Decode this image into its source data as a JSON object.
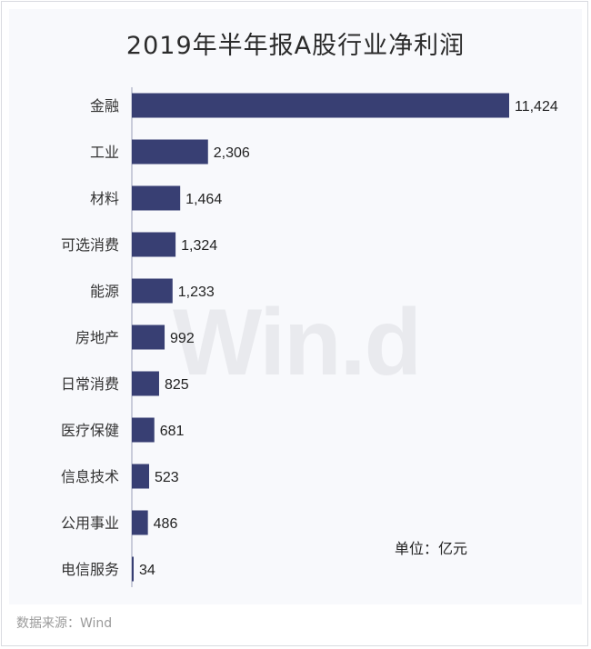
{
  "title": "2019年半年报A股行业净利润",
  "unit_label": "单位：亿元",
  "source_label": "数据来源：Wind",
  "watermark": "Win.d",
  "colors": {
    "bar": "#383f73",
    "axis": "#9aa0b8",
    "text": "#222222",
    "panel": "#f8f9fc"
  },
  "chart_data": {
    "type": "bar",
    "orientation": "horizontal",
    "title": "2019年半年报A股行业净利润",
    "unit": "单位：亿元",
    "categories": [
      "金融",
      "工业",
      "材料",
      "可选消费",
      "能源",
      "房地产",
      "日常消费",
      "医疗保健",
      "信息技术",
      "公用事业",
      "电信服务"
    ],
    "values": [
      11424,
      2306,
      1464,
      1324,
      1233,
      992,
      825,
      681,
      523,
      486,
      34
    ],
    "value_labels": [
      "11,424",
      "2,306",
      "1,464",
      "1,324",
      "1,233",
      "992",
      "825",
      "681",
      "523",
      "486",
      "34"
    ],
    "xlim": [
      0,
      11424
    ],
    "grid": false,
    "legend": "none"
  }
}
